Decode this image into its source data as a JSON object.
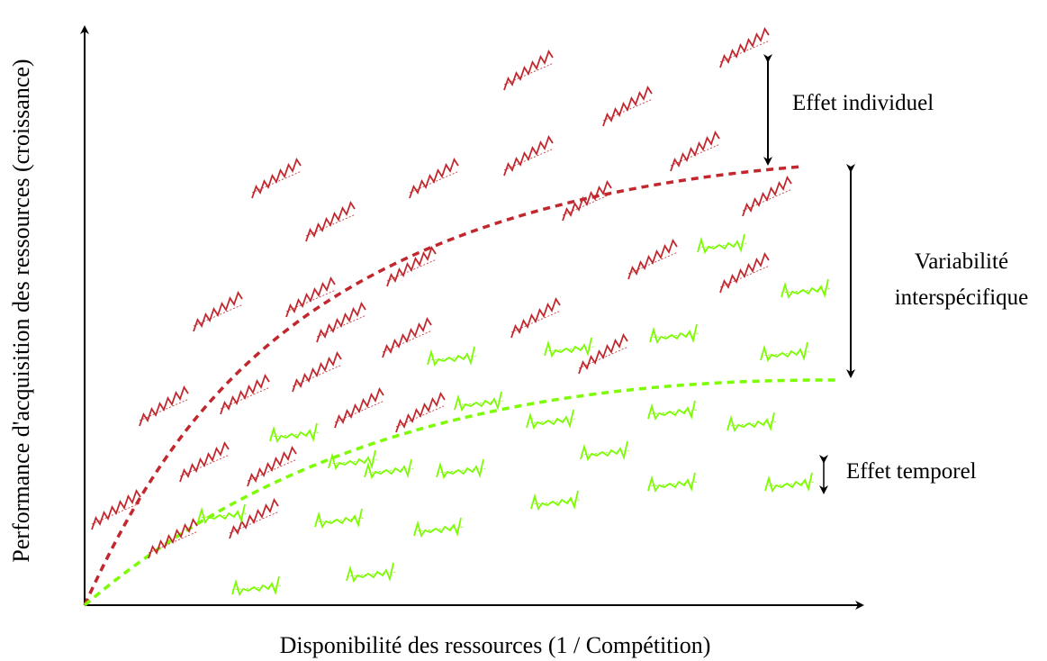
{
  "labels": {
    "y_axis": "Performance d'acquisition des ressources (croissance)",
    "x_axis": "Disponibilité des ressources (1 / Compétition)",
    "individual_effect": "Effet individuel",
    "interspecific_line1": "Variabilité",
    "interspecific_line2": "interspécifique",
    "temporal_effect": "Effet temporel"
  },
  "colors": {
    "species_1": "#c1272d",
    "species_2": "#7cfc00",
    "axis": "#000000"
  }
}
